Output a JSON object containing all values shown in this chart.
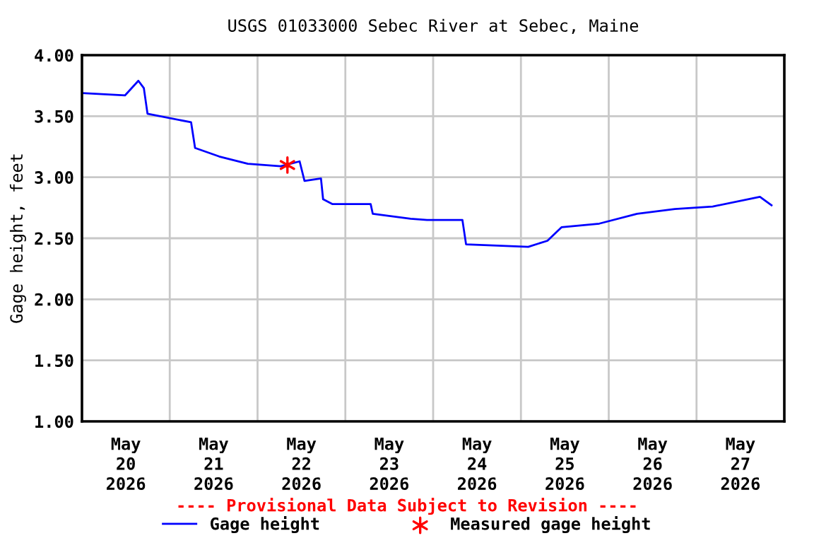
{
  "chart_data": {
    "type": "line",
    "title": "USGS 01033000 Sebec River at Sebec, Maine",
    "ylabel": "Gage height, feet",
    "annotations": [
      "---- Provisional Data Subject to Revision ----"
    ],
    "series": [
      {
        "name": "Gage height",
        "color": "#0000ff",
        "x": [
          "2026-05-20T00:00",
          "2026-05-20T11:45",
          "2026-05-20T15:25",
          "2026-05-20T16:55",
          "2026-05-20T17:55",
          "2026-05-21T05:50",
          "2026-05-21T06:55",
          "2026-05-21T13:30",
          "2026-05-21T21:20",
          "2026-05-22T06:20",
          "2026-05-22T11:30",
          "2026-05-22T12:50",
          "2026-05-22T17:20",
          "2026-05-22T17:55",
          "2026-05-22T20:30",
          "2026-05-23T06:55",
          "2026-05-23T07:30",
          "2026-05-23T17:50",
          "2026-05-23T22:20",
          "2026-05-24T08:00",
          "2026-05-24T09:00",
          "2026-05-25T02:00",
          "2026-05-25T07:15",
          "2026-05-25T11:05",
          "2026-05-25T21:25",
          "2026-05-26T07:45",
          "2026-05-26T18:05",
          "2026-05-27T04:25",
          "2026-05-27T17:20",
          "2026-05-27T20:30"
        ],
        "values": [
          3.69,
          3.67,
          3.79,
          3.73,
          3.52,
          3.45,
          3.24,
          3.17,
          3.11,
          3.09,
          3.13,
          2.97,
          2.99,
          2.82,
          2.78,
          2.78,
          2.7,
          2.66,
          2.65,
          2.65,
          2.45,
          2.43,
          2.48,
          2.59,
          2.62,
          2.7,
          2.74,
          2.76,
          2.84,
          2.77
        ]
      },
      {
        "name": "Measured gage height",
        "type": "scatter",
        "color": "#ff0000",
        "marker": "cross",
        "x": [
          "2026-05-22T08:10"
        ],
        "values": [
          3.1
        ]
      }
    ],
    "xlim": [
      "2026-05-20T00:00",
      "2026-05-28T00:00"
    ],
    "xticks": [
      {
        "value": "2026-05-20T12:00",
        "label": "May\n20\n2026"
      },
      {
        "value": "2026-05-21T12:00",
        "label": "May\n21\n2026"
      },
      {
        "value": "2026-05-22T12:00",
        "label": "May\n22\n2026"
      },
      {
        "value": "2026-05-23T12:00",
        "label": "May\n23\n2026"
      },
      {
        "value": "2026-05-24T12:00",
        "label": "May\n24\n2026"
      },
      {
        "value": "2026-05-25T12:00",
        "label": "May\n25\n2026"
      },
      {
        "value": "2026-05-26T12:00",
        "label": "May\n26\n2026"
      },
      {
        "value": "2026-05-27T12:00",
        "label": "May\n27\n2026"
      },
      {
        "value": "2026-05-21T00:00",
        "label": null
      },
      {
        "value": "2026-05-22T00:00",
        "label": null
      },
      {
        "value": "2026-05-23T00:00",
        "label": null
      },
      {
        "value": "2026-05-24T00:00",
        "label": null
      },
      {
        "value": "2026-05-25T00:00",
        "label": null
      },
      {
        "value": "2026-05-26T00:00",
        "label": null
      },
      {
        "value": "2026-05-27T00:00",
        "label": null
      }
    ],
    "ylim": [
      1.0,
      4.0
    ],
    "yticks": [
      {
        "value": 1.0,
        "label": "1.00"
      },
      {
        "value": 1.5,
        "label": "1.50"
      },
      {
        "value": 2.0,
        "label": "2.00"
      },
      {
        "value": 2.5,
        "label": "2.50"
      },
      {
        "value": 3.0,
        "label": "3.00"
      },
      {
        "value": 3.5,
        "label": "3.50"
      },
      {
        "value": 4.0,
        "label": "4.00"
      }
    ],
    "grid": true,
    "legend": "bottom"
  }
}
